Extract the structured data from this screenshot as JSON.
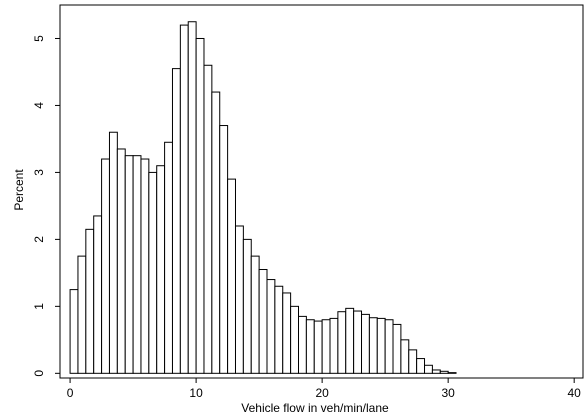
{
  "chart_data": {
    "type": "histogram",
    "x_label": "Vehicle flow in veh/min/lane",
    "y_label": "Percent",
    "bins": [
      0,
      0.625,
      1.25,
      1.875,
      2.5,
      3.125,
      3.75,
      4.375,
      5,
      5.625,
      6.25,
      6.875,
      7.5,
      8.125,
      8.75,
      9.375,
      10,
      10.625,
      11.25,
      11.875,
      12.5,
      13.125,
      13.75,
      14.375,
      15,
      15.625,
      16.25,
      16.875,
      17.5,
      18.125,
      18.75,
      19.375,
      20,
      20.625,
      21.25,
      21.875,
      22.5,
      23.125,
      23.75,
      24.375,
      25,
      25.625,
      26.25,
      26.875,
      27.5,
      28.125,
      28.75,
      29.375,
      30,
      30.625
    ],
    "values": [
      1.25,
      1.75,
      2.15,
      2.35,
      3.2,
      3.6,
      3.35,
      3.25,
      3.25,
      3.2,
      3.0,
      3.1,
      3.45,
      4.55,
      5.2,
      5.25,
      5.0,
      4.6,
      4.2,
      3.7,
      2.9,
      2.2,
      2.0,
      1.75,
      1.55,
      1.4,
      1.3,
      1.2,
      1.0,
      0.85,
      0.8,
      0.78,
      0.8,
      0.82,
      0.92,
      0.97,
      0.93,
      0.88,
      0.83,
      0.82,
      0.8,
      0.73,
      0.5,
      0.35,
      0.22,
      0.12,
      0.05,
      0.03,
      0.01
    ],
    "color": "#ffffff",
    "xlim": [
      -0.8,
      40.7
    ],
    "xticks": [
      0,
      10,
      20,
      30,
      40
    ],
    "ylim": [
      -0.07,
      5.5
    ],
    "yticks": [
      0,
      1,
      2,
      3,
      4,
      5
    ]
  }
}
